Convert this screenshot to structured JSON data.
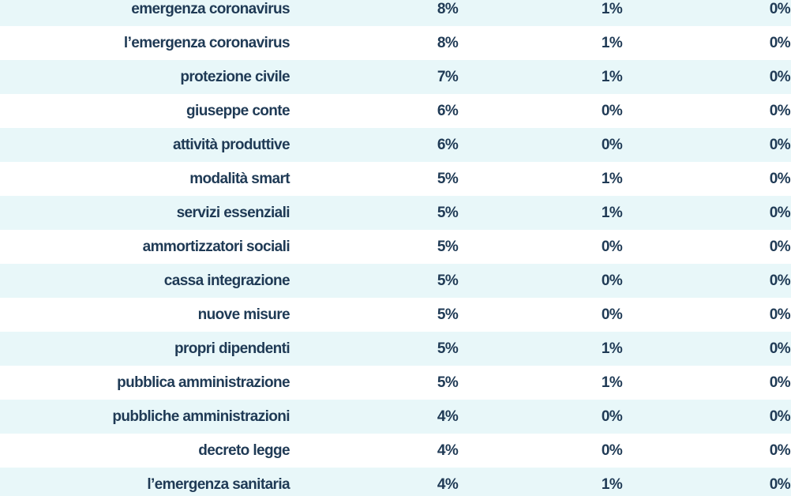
{
  "chart_data": {
    "type": "table",
    "rows": [
      {
        "term": "emergenza coronavirus",
        "v1": "8%",
        "v2": "1%",
        "v3": "0%"
      },
      {
        "term": "l’emergenza coronavirus",
        "v1": "8%",
        "v2": "1%",
        "v3": "0%"
      },
      {
        "term": "protezione civile",
        "v1": "7%",
        "v2": "1%",
        "v3": "0%"
      },
      {
        "term": "giuseppe conte",
        "v1": "6%",
        "v2": "0%",
        "v3": "0%"
      },
      {
        "term": "attività produttive",
        "v1": "6%",
        "v2": "0%",
        "v3": "0%"
      },
      {
        "term": "modalità smart",
        "v1": "5%",
        "v2": "1%",
        "v3": "0%"
      },
      {
        "term": "servizi essenziali",
        "v1": "5%",
        "v2": "1%",
        "v3": "0%"
      },
      {
        "term": "ammortizzatori sociali",
        "v1": "5%",
        "v2": "0%",
        "v3": "0%"
      },
      {
        "term": "cassa integrazione",
        "v1": "5%",
        "v2": "0%",
        "v3": "0%"
      },
      {
        "term": "nuove misure",
        "v1": "5%",
        "v2": "0%",
        "v3": "0%"
      },
      {
        "term": "propri dipendenti",
        "v1": "5%",
        "v2": "1%",
        "v3": "0%"
      },
      {
        "term": "pubblica amministrazione",
        "v1": "5%",
        "v2": "1%",
        "v3": "0%"
      },
      {
        "term": "pubbliche amministrazioni",
        "v1": "4%",
        "v2": "0%",
        "v3": "0%"
      },
      {
        "term": "decreto legge",
        "v1": "4%",
        "v2": "0%",
        "v3": "0%"
      },
      {
        "term": "l’emergenza sanitaria",
        "v1": "4%",
        "v2": "1%",
        "v3": "0%"
      }
    ],
    "colors": {
      "text": "#1f3a55",
      "stripe": "#e8f7f9",
      "background": "#ffffff"
    }
  }
}
